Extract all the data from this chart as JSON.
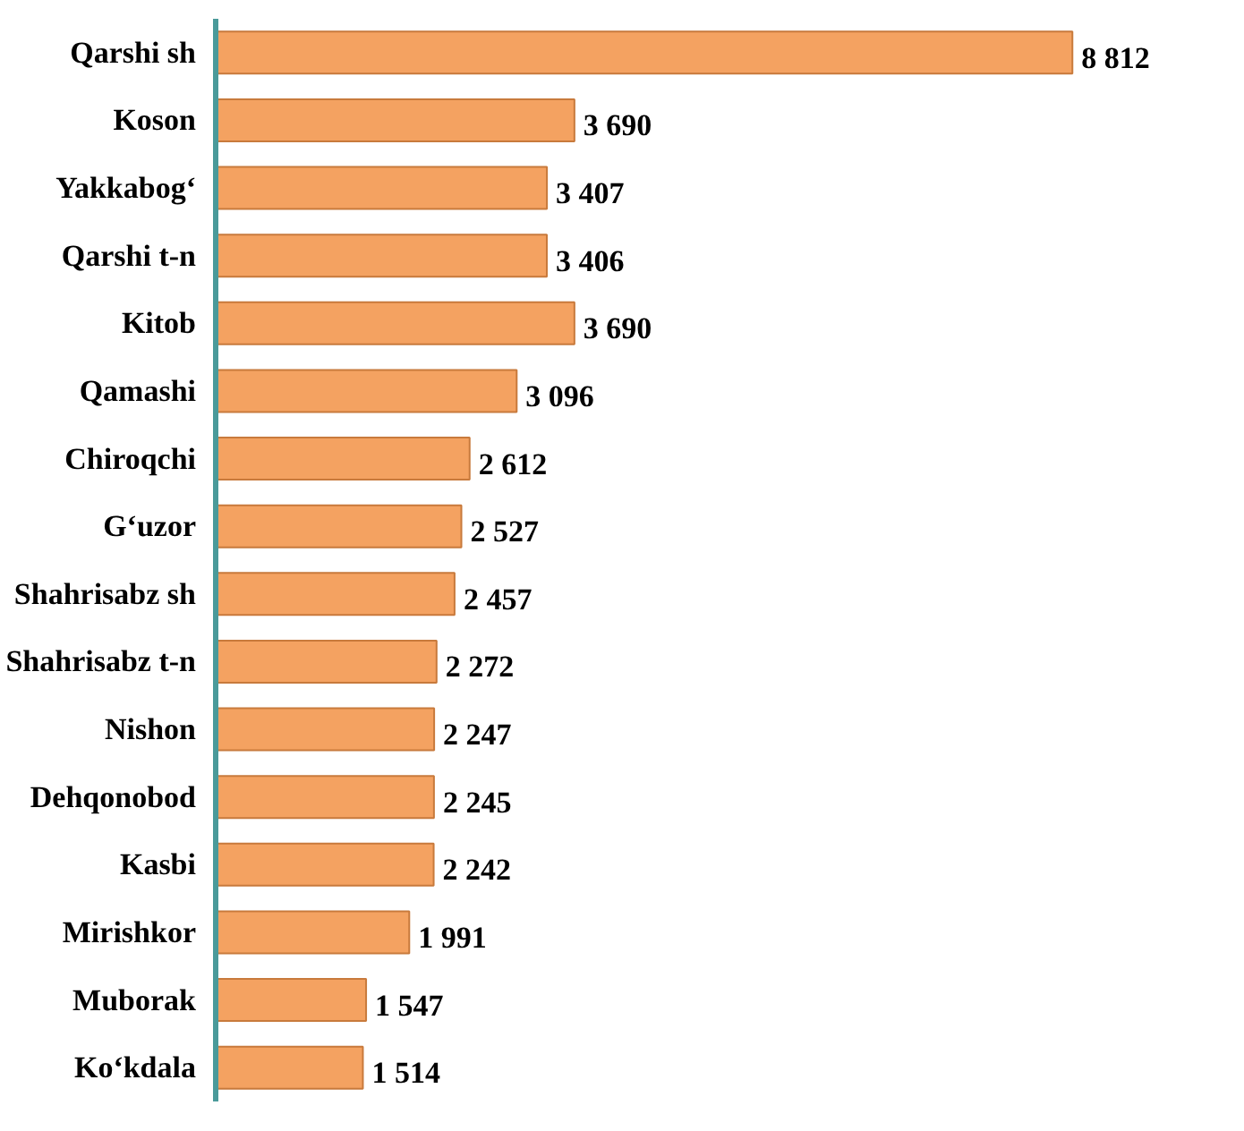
{
  "chart_data": {
    "type": "bar",
    "orientation": "horizontal",
    "categories": [
      "Qarshi sh",
      "Koson",
      "Yakkabog‘",
      "Qarshi t-n",
      "Kitob",
      "Qamashi",
      "Chiroqchi",
      "G‘uzor",
      "Shahrisabz sh",
      "Shahrisabz t-n",
      "Nishon",
      "Dehqonobod",
      "Kasbi",
      "Mirishkor",
      "Muborak",
      "Ko‘kdala"
    ],
    "values": [
      8812,
      3690,
      3407,
      3406,
      3690,
      3096,
      2612,
      2527,
      2457,
      2272,
      2247,
      2245,
      2242,
      1991,
      1547,
      1514
    ],
    "value_labels": [
      "8 812",
      "3 690",
      "3 407",
      "3 406",
      "3 690",
      "3 096",
      "2 612",
      "2 527",
      "2 457",
      "2 272",
      "2 247",
      "2 245",
      "2 242",
      "1 991",
      "1 547",
      "1 514"
    ],
    "color": "#f4a261",
    "grid": false
  }
}
